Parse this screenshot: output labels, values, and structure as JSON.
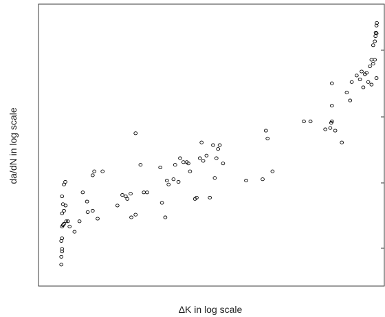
{
  "chart_data": {
    "type": "scatter",
    "title": "",
    "xlabel": "ΔK in log scale",
    "ylabel": "da/dN in log scale",
    "xlim": [
      0,
      100
    ],
    "ylim": [
      0,
      100
    ],
    "x_ticks_labeled": false,
    "y_ticks_labeled": false,
    "grid": false,
    "legend": "none",
    "marker": "open-circle",
    "marker_color": "#000000",
    "series": [
      {
        "points": [
          [
            4,
            4.5
          ],
          [
            4,
            7.5
          ],
          [
            4.2,
            9.5
          ],
          [
            4.2,
            10.5
          ],
          [
            4,
            13.5
          ],
          [
            4.2,
            14.5
          ],
          [
            4.2,
            19
          ],
          [
            4.5,
            19.5
          ],
          [
            4.8,
            20
          ],
          [
            5.5,
            21
          ],
          [
            6,
            21
          ],
          [
            4.2,
            24
          ],
          [
            4.8,
            25
          ],
          [
            5.3,
            27
          ],
          [
            4.5,
            27.5
          ],
          [
            4.2,
            30.5
          ],
          [
            4.8,
            35
          ],
          [
            5.2,
            36
          ],
          [
            6.5,
            19
          ],
          [
            8,
            17
          ],
          [
            9.5,
            21
          ],
          [
            10.5,
            32
          ],
          [
            11.8,
            28.5
          ],
          [
            12,
            24.5
          ],
          [
            13.5,
            25
          ],
          [
            15,
            22
          ],
          [
            14,
            40
          ],
          [
            13.5,
            38.5
          ],
          [
            16.5,
            40
          ],
          [
            21,
            27
          ],
          [
            22.5,
            31
          ],
          [
            23.5,
            30.5
          ],
          [
            24,
            29.5
          ],
          [
            25,
            31.5
          ],
          [
            25.2,
            22.5
          ],
          [
            26.5,
            23.5
          ],
          [
            26.5,
            54.5
          ],
          [
            28,
            42.5
          ],
          [
            29,
            32
          ],
          [
            30,
            32
          ],
          [
            34,
            41.5
          ],
          [
            34.5,
            28
          ],
          [
            35.5,
            22.5
          ],
          [
            36,
            36.5
          ],
          [
            36.5,
            35
          ],
          [
            38,
            37
          ],
          [
            38.5,
            42.5
          ],
          [
            39.5,
            36
          ],
          [
            40,
            45
          ],
          [
            41,
            43.5
          ],
          [
            42,
            43.5
          ],
          [
            42.5,
            43
          ],
          [
            43,
            40
          ],
          [
            44.5,
            29.5
          ],
          [
            45,
            30
          ],
          [
            46,
            45
          ],
          [
            46.5,
            51
          ],
          [
            47,
            44
          ],
          [
            48,
            46
          ],
          [
            49,
            30
          ],
          [
            50,
            50
          ],
          [
            50.5,
            37.5
          ],
          [
            51,
            45
          ],
          [
            51.5,
            48.5
          ],
          [
            52,
            50
          ],
          [
            53,
            43
          ],
          [
            60,
            36.5
          ],
          [
            65,
            37
          ],
          [
            68,
            40
          ],
          [
            66,
            55.5
          ],
          [
            66.5,
            52.5
          ],
          [
            77.5,
            59
          ],
          [
            79.5,
            59
          ],
          [
            84,
            56
          ],
          [
            85.5,
            56.5
          ],
          [
            85.8,
            58.5
          ],
          [
            86,
            59
          ],
          [
            86,
            65
          ],
          [
            86,
            73.5
          ],
          [
            87,
            55.5
          ],
          [
            89,
            51
          ],
          [
            90.5,
            70
          ],
          [
            91.5,
            67
          ],
          [
            92,
            74
          ],
          [
            93.5,
            76.5
          ],
          [
            94.5,
            75
          ],
          [
            95,
            78
          ],
          [
            95.5,
            72
          ],
          [
            96,
            77
          ],
          [
            96.5,
            77.5
          ],
          [
            97,
            74
          ],
          [
            97.5,
            80
          ],
          [
            98,
            73
          ],
          [
            98,
            82.5
          ],
          [
            98.5,
            81
          ],
          [
            99,
            82.5
          ],
          [
            99.5,
            75.5
          ],
          [
            98.5,
            88
          ],
          [
            99,
            89.5
          ],
          [
            99.2,
            91.5
          ],
          [
            99.5,
            92.5
          ],
          [
            99.3,
            92.8
          ],
          [
            99.5,
            95.5
          ],
          [
            99.6,
            96.5
          ]
        ]
      }
    ]
  }
}
